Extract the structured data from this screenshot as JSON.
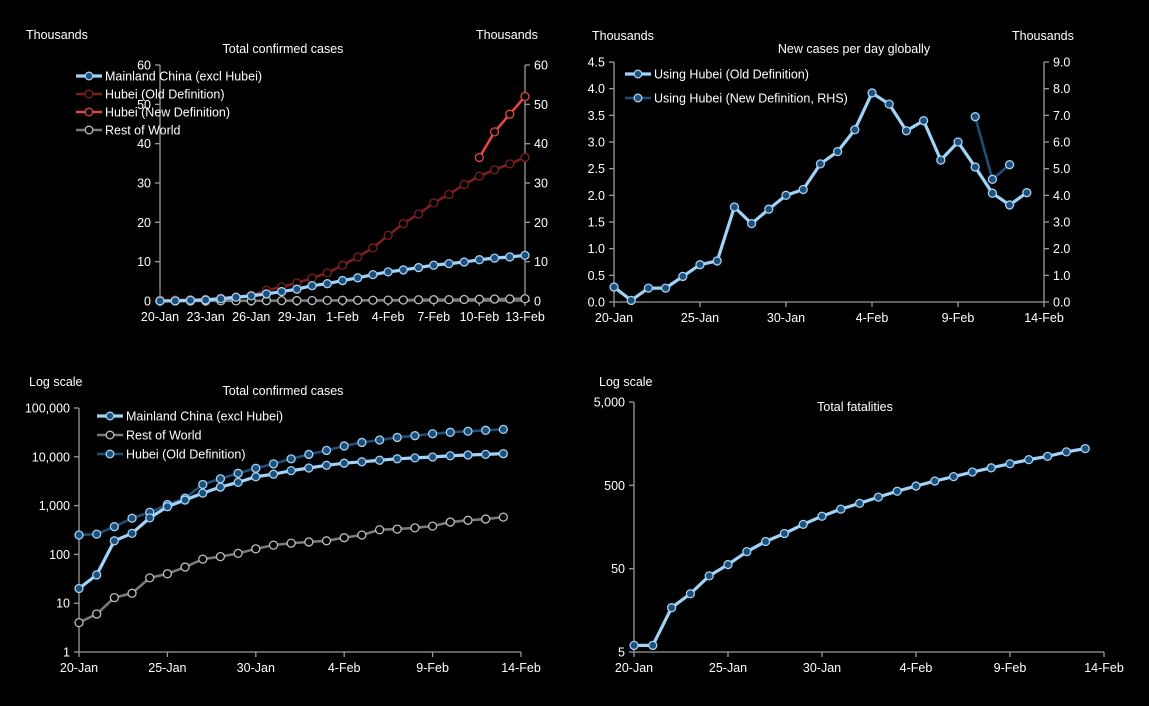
{
  "chart_data": [
    {
      "id": "total-cases-linear",
      "type": "line",
      "title": "Total confirmed cases",
      "ylabel_left": "Thousands",
      "ylabel_right": "Thousands",
      "x": [
        "20-Jan",
        "21-Jan",
        "22-Jan",
        "23-Jan",
        "24-Jan",
        "25-Jan",
        "26-Jan",
        "27-Jan",
        "28-Jan",
        "29-Jan",
        "30-Jan",
        "31-Jan",
        "1-Feb",
        "2-Feb",
        "3-Feb",
        "4-Feb",
        "5-Feb",
        "6-Feb",
        "7-Feb",
        "8-Feb",
        "9-Feb",
        "10-Feb",
        "11-Feb",
        "12-Feb",
        "13-Feb"
      ],
      "xticks": [
        "20-Jan",
        "23-Jan",
        "26-Jan",
        "29-Jan",
        "1-Feb",
        "4-Feb",
        "7-Feb",
        "10-Feb",
        "13-Feb"
      ],
      "ylim": [
        0,
        60
      ],
      "yticks": [
        "0",
        "10",
        "20",
        "30",
        "40",
        "50",
        "60"
      ],
      "yticks_right": [
        "0",
        "10",
        "20",
        "30",
        "40",
        "50",
        "60"
      ],
      "legend_position": "top-left",
      "series": [
        {
          "name": "Mainland China (excl Hubei)",
          "color": "#9fd3f7",
          "marker_fill": "#1f4e79",
          "values": [
            0.02,
            0.04,
            0.18,
            0.27,
            0.58,
            0.95,
            1.3,
            1.8,
            2.4,
            3.0,
            3.9,
            4.4,
            5.2,
            5.9,
            6.7,
            7.4,
            7.9,
            8.5,
            9.1,
            9.5,
            9.9,
            10.5,
            10.9,
            11.2,
            11.6
          ]
        },
        {
          "name": "Hubei (Old Definition)",
          "color": "#7b1f1f",
          "marker_fill": "#000000",
          "values": [
            0.27,
            0.27,
            0.37,
            0.44,
            0.73,
            1.05,
            1.42,
            2.71,
            3.55,
            4.59,
            5.81,
            7.15,
            9.07,
            11.18,
            13.52,
            16.68,
            19.67,
            22.11,
            24.95,
            27.1,
            29.63,
            31.73,
            33.37,
            34.87,
            36.5
          ]
        },
        {
          "name": "Hubei (New Definition)",
          "color": "#e04848",
          "marker_fill": "#000000",
          "values": [
            null,
            null,
            null,
            null,
            null,
            null,
            null,
            null,
            null,
            null,
            null,
            null,
            null,
            null,
            null,
            null,
            null,
            null,
            null,
            null,
            null,
            36.5,
            43.0,
            47.5,
            52.0
          ]
        },
        {
          "name": "Rest of World",
          "color": "#7a7a7a",
          "marker_fill": "#000000",
          "values": [
            0.004,
            0.006,
            0.013,
            0.016,
            0.033,
            0.04,
            0.055,
            0.08,
            0.09,
            0.105,
            0.13,
            0.155,
            0.17,
            0.18,
            0.19,
            0.22,
            0.25,
            0.32,
            0.33,
            0.35,
            0.38,
            0.46,
            0.5,
            0.53,
            0.58
          ]
        }
      ]
    },
    {
      "id": "new-cases-per-day",
      "type": "line",
      "title": "New cases per day globally",
      "ylabel_left": "Thousands",
      "ylabel_right": "Thousands",
      "x": [
        "20-Jan",
        "21-Jan",
        "22-Jan",
        "23-Jan",
        "24-Jan",
        "25-Jan",
        "26-Jan",
        "27-Jan",
        "28-Jan",
        "29-Jan",
        "30-Jan",
        "31-Jan",
        "1-Feb",
        "2-Feb",
        "3-Feb",
        "4-Feb",
        "5-Feb",
        "6-Feb",
        "7-Feb",
        "8-Feb",
        "9-Feb",
        "10-Feb",
        "11-Feb",
        "12-Feb",
        "13-Feb"
      ],
      "xticks": [
        "20-Jan",
        "25-Jan",
        "30-Jan",
        "4-Feb",
        "9-Feb",
        "14-Feb"
      ],
      "ylim": [
        0,
        4.5
      ],
      "ylim_right": [
        0,
        9.0
      ],
      "yticks": [
        "0.0",
        "0.5",
        "1.0",
        "1.5",
        "2.0",
        "2.5",
        "3.0",
        "3.5",
        "4.0",
        "4.5"
      ],
      "yticks_right": [
        "0.0",
        "1.0",
        "2.0",
        "3.0",
        "4.0",
        "5.0",
        "6.0",
        "7.0",
        "8.0",
        "9.0"
      ],
      "legend_position": "top-left",
      "series": [
        {
          "name": "Using Hubei (Old Definition)",
          "axis": "left",
          "color": "#9fd3f7",
          "marker_fill": "#1f4e79",
          "values": [
            0.28,
            0.03,
            0.26,
            0.26,
            0.48,
            0.7,
            0.77,
            1.78,
            1.47,
            1.74,
            2.0,
            2.11,
            2.59,
            2.82,
            3.23,
            3.92,
            3.71,
            3.21,
            3.4,
            2.66,
            3.0,
            2.53,
            2.04,
            1.82,
            2.05
          ]
        },
        {
          "name": "Using Hubei (New Definition, RHS)",
          "axis": "right",
          "color": "#1f4e79",
          "marker_fill": "#1f4e79",
          "values": [
            null,
            null,
            null,
            null,
            null,
            null,
            null,
            null,
            null,
            null,
            null,
            null,
            null,
            null,
            null,
            null,
            null,
            null,
            null,
            null,
            null,
            6.95,
            4.6,
            5.15,
            null
          ]
        }
      ]
    },
    {
      "id": "total-cases-log",
      "type": "line",
      "title": "Total confirmed cases",
      "ylabel_left": "Log scale",
      "yscale": "log",
      "x": [
        "20-Jan",
        "21-Jan",
        "22-Jan",
        "23-Jan",
        "24-Jan",
        "25-Jan",
        "26-Jan",
        "27-Jan",
        "28-Jan",
        "29-Jan",
        "30-Jan",
        "31-Jan",
        "1-Feb",
        "2-Feb",
        "3-Feb",
        "4-Feb",
        "5-Feb",
        "6-Feb",
        "7-Feb",
        "8-Feb",
        "9-Feb",
        "10-Feb",
        "11-Feb",
        "12-Feb",
        "13-Feb"
      ],
      "xticks": [
        "20-Jan",
        "25-Jan",
        "30-Jan",
        "4-Feb",
        "9-Feb",
        "14-Feb"
      ],
      "ylim": [
        1,
        100000
      ],
      "yticks": [
        "1",
        "10",
        "100",
        "1,000",
        "10,000",
        "100,000"
      ],
      "legend_position": "top-left",
      "series": [
        {
          "name": "Mainland China (excl Hubei)",
          "color": "#9fd3f7",
          "marker_fill": "#1f4e79",
          "values": [
            20,
            38,
            190,
            270,
            560,
            950,
            1300,
            1800,
            2400,
            3000,
            3900,
            4400,
            5200,
            5900,
            6700,
            7400,
            7900,
            8500,
            9100,
            9500,
            9900,
            10500,
            10900,
            11200,
            11600
          ]
        },
        {
          "name": "Rest of World",
          "color": "#7a7a7a",
          "marker_fill": "#000000",
          "values": [
            4,
            6,
            13,
            16,
            33,
            40,
            55,
            80,
            90,
            105,
            130,
            155,
            170,
            180,
            190,
            220,
            250,
            320,
            330,
            350,
            380,
            460,
            500,
            530,
            580
          ]
        },
        {
          "name": "Hubei (Old Definition)",
          "color": "#1f4e79",
          "marker_fill": "#1f4e79",
          "values": [
            250,
            260,
            370,
            550,
            730,
            1050,
            1420,
            2710,
            3550,
            4590,
            5810,
            7150,
            9070,
            11180,
            13520,
            16680,
            19670,
            22110,
            24950,
            27100,
            29630,
            31730,
            33370,
            34870,
            36500
          ]
        }
      ]
    },
    {
      "id": "total-fatalities-log",
      "type": "line",
      "title": "Total fatalities",
      "ylabel_left": "Log scale",
      "yscale": "log",
      "x": [
        "20-Jan",
        "21-Jan",
        "22-Jan",
        "23-Jan",
        "24-Jan",
        "25-Jan",
        "26-Jan",
        "27-Jan",
        "28-Jan",
        "29-Jan",
        "30-Jan",
        "31-Jan",
        "1-Feb",
        "2-Feb",
        "3-Feb",
        "4-Feb",
        "5-Feb",
        "6-Feb",
        "7-Feb",
        "8-Feb",
        "9-Feb",
        "10-Feb",
        "11-Feb",
        "12-Feb",
        "13-Feb"
      ],
      "xticks": [
        "20-Jan",
        "25-Jan",
        "30-Jan",
        "4-Feb",
        "9-Feb",
        "14-Feb"
      ],
      "ylim": [
        5,
        5000
      ],
      "yticks": [
        "5",
        "50",
        "500",
        "5,000"
      ],
      "legend_position": "none",
      "series": [
        {
          "name": "Total fatalities",
          "color": "#9fd3f7",
          "marker_fill": "#1f4e79",
          "values": [
            6,
            6,
            17,
            25,
            41,
            56,
            80,
            106,
            132,
            170,
            213,
            259,
            304,
            361,
            425,
            490,
            563,
            636,
            722,
            811,
            908,
            1017,
            1114,
            1260,
            1380
          ]
        }
      ]
    }
  ]
}
